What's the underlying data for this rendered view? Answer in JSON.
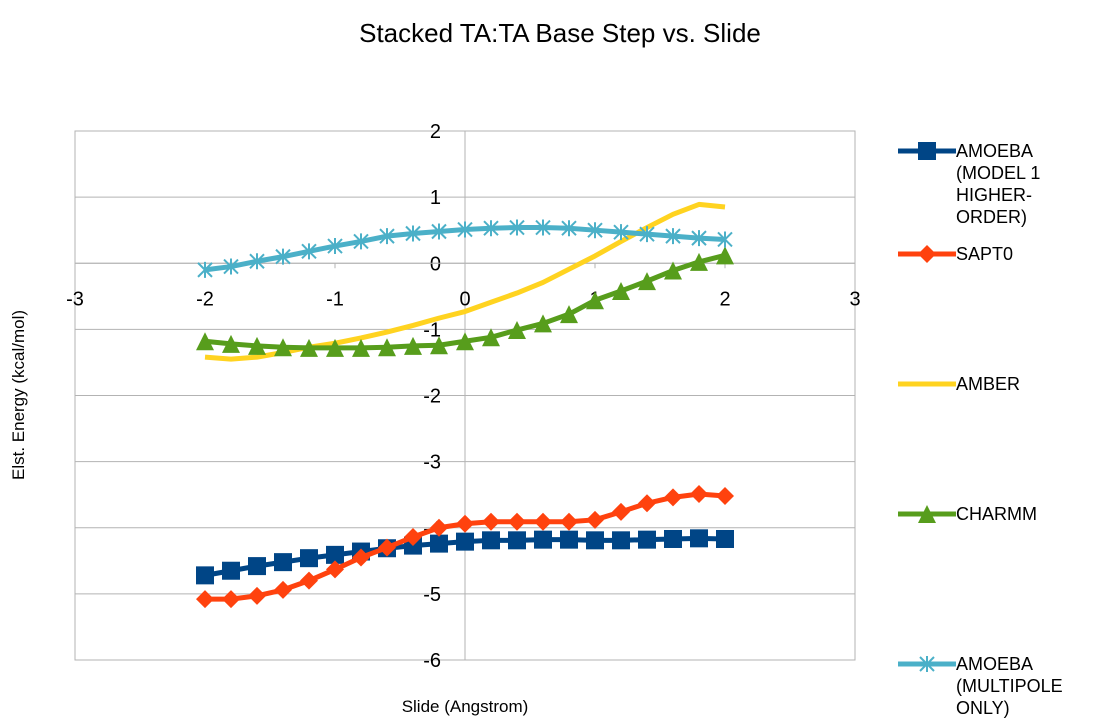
{
  "chart_data": {
    "type": "line",
    "title": "Stacked TA:TA Base Step vs. Slide",
    "x_label": "Slide (Angstrom)",
    "y_label": "Elst. Energy (kcal/mol)",
    "x": [
      -2,
      -1.8,
      -1.6,
      -1.4,
      -1.2,
      -1,
      -0.8,
      -0.6,
      -0.4,
      -0.2,
      0,
      0.2,
      0.4,
      0.6,
      0.8,
      1,
      1.2,
      1.4,
      1.6,
      1.8,
      2
    ],
    "xlim": [
      -3,
      3
    ],
    "xticks": [
      -3,
      -2,
      -1,
      0,
      1,
      2,
      3
    ],
    "ylim": [
      -6,
      2
    ],
    "yticks": [
      -6,
      -5,
      -4,
      -3,
      -2,
      -1,
      0,
      1,
      2
    ],
    "grid": true,
    "legend": "right",
    "series": [
      {
        "name": "AMOEBA (MODEL 1 HIGHER-ORDER)",
        "color": "#004586",
        "marker": "square",
        "values": [
          -4.72,
          -4.65,
          -4.58,
          -4.52,
          -4.46,
          -4.41,
          -4.36,
          -4.31,
          -4.27,
          -4.24,
          -4.21,
          -4.19,
          -4.19,
          -4.18,
          -4.18,
          -4.19,
          -4.19,
          -4.18,
          -4.17,
          -4.16,
          -4.17
        ]
      },
      {
        "name": "SAPT0",
        "color": "#ff420e",
        "marker": "diamond",
        "values": [
          -5.08,
          -5.08,
          -5.03,
          -4.94,
          -4.8,
          -4.63,
          -4.45,
          -4.3,
          -4.14,
          -4.0,
          -3.94,
          -3.91,
          -3.91,
          -3.91,
          -3.91,
          -3.88,
          -3.76,
          -3.63,
          -3.54,
          -3.49,
          -3.52
        ]
      },
      {
        "name": "AMBER",
        "color": "#ffd320",
        "marker": "none",
        "values": [
          -1.42,
          -1.45,
          -1.42,
          -1.35,
          -1.27,
          -1.21,
          -1.13,
          -1.04,
          -0.94,
          -0.83,
          -0.73,
          -0.59,
          -0.45,
          -0.29,
          -0.09,
          0.11,
          0.33,
          0.54,
          0.74,
          0.89,
          0.85
        ]
      },
      {
        "name": "CHARMM",
        "color": "#579d1c",
        "marker": "triangle",
        "values": [
          -1.18,
          -1.22,
          -1.25,
          -1.27,
          -1.28,
          -1.28,
          -1.28,
          -1.27,
          -1.25,
          -1.24,
          -1.18,
          -1.12,
          -1.01,
          -0.91,
          -0.77,
          -0.56,
          -0.42,
          -0.27,
          -0.11,
          0.02,
          0.12
        ]
      },
      {
        "name": "AMOEBA (MULTIPOLE ONLY)",
        "color": "#4bb0c8",
        "marker": "asterisk",
        "values": [
          -0.1,
          -0.05,
          0.03,
          0.1,
          0.18,
          0.26,
          0.33,
          0.41,
          0.45,
          0.48,
          0.51,
          0.53,
          0.54,
          0.54,
          0.53,
          0.5,
          0.47,
          0.44,
          0.41,
          0.38,
          0.36
        ]
      }
    ]
  }
}
